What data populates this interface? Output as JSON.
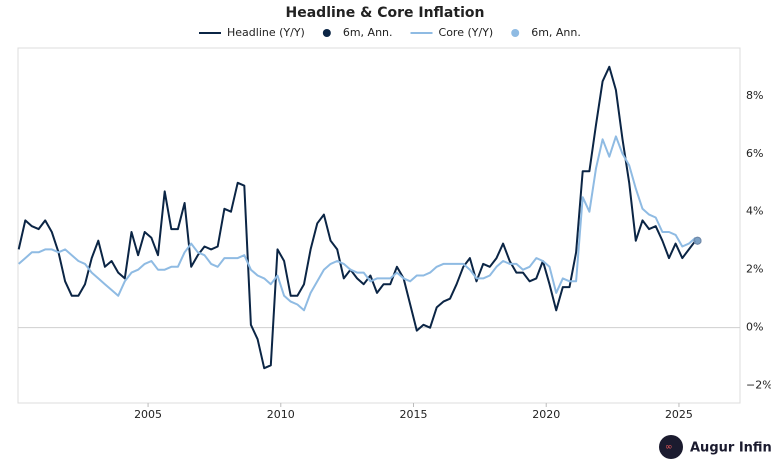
{
  "chart_data": {
    "type": "line",
    "title": "Headline & Core Inflation",
    "x": [
      2000.125,
      2000.375,
      2000.625,
      2000.875,
      2001.125,
      2001.375,
      2001.625,
      2001.875,
      2002.125,
      2002.375,
      2002.625,
      2002.875,
      2003.125,
      2003.375,
      2003.625,
      2003.875,
      2004.125,
      2004.375,
      2004.625,
      2004.875,
      2005.125,
      2005.375,
      2005.625,
      2005.875,
      2006.125,
      2006.375,
      2006.625,
      2006.875,
      2007.125,
      2007.375,
      2007.625,
      2007.875,
      2008.125,
      2008.375,
      2008.625,
      2008.875,
      2009.125,
      2009.375,
      2009.625,
      2009.875,
      2010.125,
      2010.375,
      2010.625,
      2010.875,
      2011.125,
      2011.375,
      2011.625,
      2011.875,
      2012.125,
      2012.375,
      2012.625,
      2012.875,
      2013.125,
      2013.375,
      2013.625,
      2013.875,
      2014.125,
      2014.375,
      2014.625,
      2014.875,
      2015.125,
      2015.375,
      2015.625,
      2015.875,
      2016.125,
      2016.375,
      2016.625,
      2016.875,
      2017.125,
      2017.375,
      2017.625,
      2017.875,
      2018.125,
      2018.375,
      2018.625,
      2018.875,
      2019.125,
      2019.375,
      2019.625,
      2019.875,
      2020.125,
      2020.375,
      2020.625,
      2020.875,
      2021.125,
      2021.375,
      2021.625,
      2021.875,
      2022.125,
      2022.375,
      2022.625,
      2022.875,
      2023.125,
      2023.375,
      2023.625,
      2023.875,
      2024.125,
      2024.375,
      2024.625,
      2024.875,
      2025.125,
      2025.375,
      2025.625
    ],
    "series": [
      {
        "name": "Headline (Y/Y)",
        "style": "line",
        "color": "#0b2545",
        "values": [
          2.7,
          3.7,
          3.5,
          3.4,
          3.7,
          3.3,
          2.6,
          1.6,
          1.1,
          1.1,
          1.5,
          2.4,
          3.0,
          2.1,
          2.3,
          1.9,
          1.7,
          3.3,
          2.5,
          3.3,
          3.1,
          2.5,
          4.7,
          3.4,
          3.4,
          4.3,
          2.1,
          2.5,
          2.8,
          2.7,
          2.8,
          4.1,
          4.0,
          5.0,
          4.9,
          0.1,
          -0.4,
          -1.4,
          -1.3,
          2.7,
          2.3,
          1.1,
          1.1,
          1.5,
          2.7,
          3.6,
          3.9,
          3.0,
          2.7,
          1.7,
          2.0,
          1.7,
          1.5,
          1.8,
          1.2,
          1.5,
          1.5,
          2.1,
          1.7,
          0.8,
          -0.1,
          0.1,
          0.0,
          0.7,
          0.9,
          1.0,
          1.5,
          2.1,
          2.4,
          1.6,
          2.2,
          2.1,
          2.4,
          2.9,
          2.3,
          1.9,
          1.9,
          1.6,
          1.7,
          2.3,
          1.5,
          0.6,
          1.4,
          1.4,
          2.6,
          5.4,
          5.4,
          7.0,
          8.5,
          9.0,
          8.2,
          6.5,
          5.0,
          3.0,
          3.7,
          3.4,
          3.5,
          3.0,
          2.4,
          2.9,
          2.4,
          2.7,
          3.0
        ]
      },
      {
        "name": "6m, Ann.",
        "style": "dot",
        "color": "#0b2545",
        "x": [
          2025.7
        ],
        "values": [
          3.0
        ]
      },
      {
        "name": "Core (Y/Y)",
        "style": "line",
        "color": "#8fbbe3",
        "values": [
          2.2,
          2.4,
          2.6,
          2.6,
          2.7,
          2.7,
          2.6,
          2.7,
          2.5,
          2.3,
          2.2,
          1.9,
          1.7,
          1.5,
          1.3,
          1.1,
          1.6,
          1.9,
          2.0,
          2.2,
          2.3,
          2.0,
          2.0,
          2.1,
          2.1,
          2.6,
          2.9,
          2.6,
          2.5,
          2.2,
          2.1,
          2.4,
          2.4,
          2.4,
          2.5,
          2.0,
          1.8,
          1.7,
          1.5,
          1.8,
          1.1,
          0.9,
          0.8,
          0.6,
          1.2,
          1.6,
          2.0,
          2.2,
          2.3,
          2.2,
          2.0,
          1.9,
          1.9,
          1.6,
          1.7,
          1.7,
          1.7,
          1.9,
          1.7,
          1.6,
          1.8,
          1.8,
          1.9,
          2.1,
          2.2,
          2.2,
          2.2,
          2.2,
          2.0,
          1.7,
          1.7,
          1.8,
          2.1,
          2.3,
          2.2,
          2.2,
          2.0,
          2.1,
          2.4,
          2.3,
          2.1,
          1.2,
          1.7,
          1.6,
          1.6,
          4.5,
          4.0,
          5.5,
          6.5,
          5.9,
          6.6,
          6.0,
          5.6,
          4.8,
          4.1,
          3.9,
          3.8,
          3.3,
          3.3,
          3.2,
          2.8,
          2.9,
          3.1
        ]
      },
      {
        "name": "6m, Ann.",
        "style": "dot",
        "color": "#8fbbe3",
        "x": [
          2025.7
        ],
        "values": [
          3.0
        ]
      }
    ],
    "xlim": [
      2000.1,
      2027.3
    ],
    "xticks": [
      2005,
      2010,
      2015,
      2020,
      2025
    ],
    "ylim": [
      -2.6,
      9.65
    ],
    "yticks": [
      {
        "value": -2,
        "label": "−2%"
      },
      {
        "value": 0,
        "label": "0%"
      },
      {
        "value": 2,
        "label": "2%"
      },
      {
        "value": 4,
        "label": "4%"
      },
      {
        "value": 6,
        "label": "6%"
      },
      {
        "value": 8,
        "label": "8%"
      }
    ],
    "zero_line": true
  },
  "brand": "Augur Infinity"
}
